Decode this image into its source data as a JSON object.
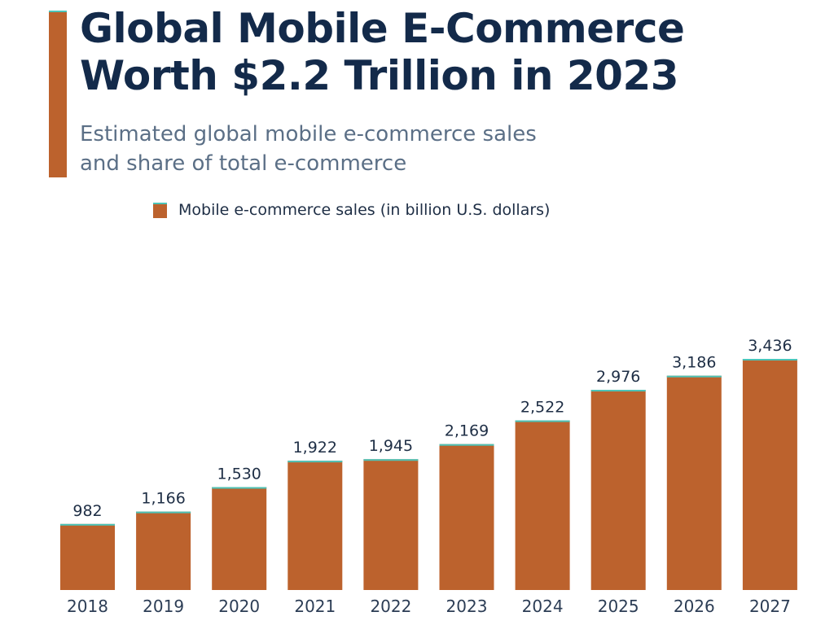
{
  "header": {
    "title_line1": "Global Mobile E-Commerce",
    "title_line2": "Worth $2.2 Trillion in 2023",
    "subtitle_line1": "Estimated global mobile e-commerce sales",
    "subtitle_line2": "and share of total e-commerce"
  },
  "colors": {
    "bar": "#bc622d",
    "bar_top": "#4cc4b8",
    "text": "#1e2e45"
  },
  "chart_data": {
    "type": "bar",
    "title": "Global Mobile E-Commerce Worth $2.2 Trillion in 2023",
    "legend": [
      "Mobile e-commerce sales (in billion U.S. dollars)"
    ],
    "legend_placement": "top",
    "categories": [
      "2018",
      "2019",
      "2020",
      "2021",
      "2022",
      "2023",
      "2024",
      "2025",
      "2026",
      "2027"
    ],
    "values": [
      982,
      1166,
      1530,
      1922,
      1945,
      2169,
      2522,
      2976,
      3186,
      3436
    ],
    "labels": [
      "982",
      "1,166",
      "1,530",
      "1,922",
      "1,945",
      "2,169",
      "2,522",
      "2,976",
      "3,186",
      "3,436"
    ],
    "ylim": [
      0,
      3436
    ],
    "grid": false
  }
}
